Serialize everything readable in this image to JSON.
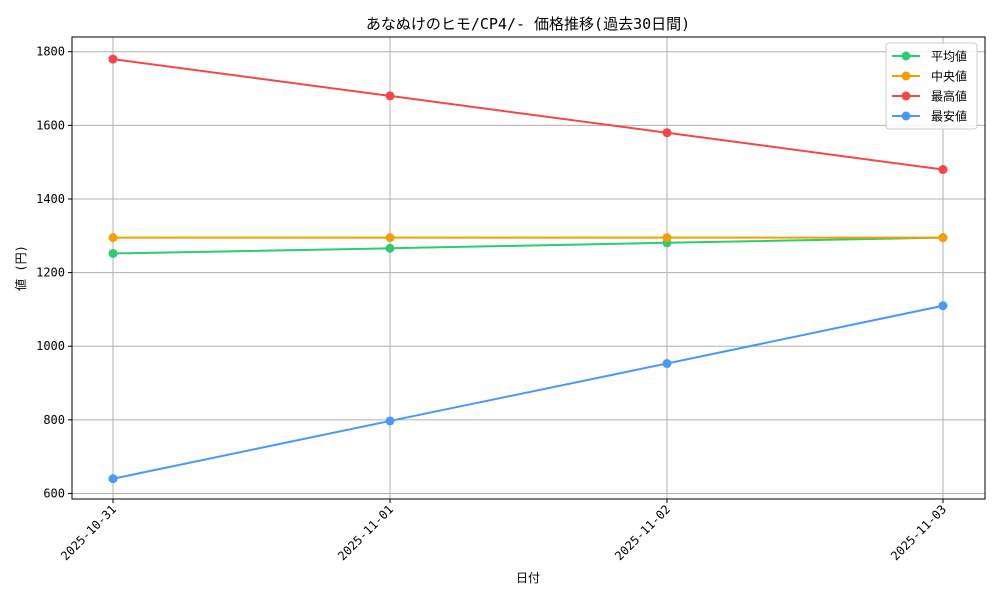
{
  "chart_data": {
    "type": "line",
    "title": "あなぬけのヒモ/CP4/- 価格推移(過去30日間)",
    "xlabel": "日付",
    "ylabel": "値 (円)",
    "categories": [
      "2025-10-31",
      "2025-11-01",
      "2025-11-02",
      "2025-11-03"
    ],
    "ylim": [
      585,
      1840
    ],
    "yticks": [
      600,
      800,
      1000,
      1200,
      1400,
      1600,
      1800
    ],
    "grid": true,
    "legend_position": "top-right",
    "series": [
      {
        "name": "平均値",
        "color": "#2ecc71",
        "values": [
          1252,
          1266,
          1281,
          1295
        ]
      },
      {
        "name": "中央値",
        "color": "#f5a000",
        "values": [
          1295,
          1295,
          1295,
          1295
        ]
      },
      {
        "name": "最高値",
        "color": "#f24848",
        "values": [
          1780,
          1680,
          1580,
          1480
        ]
      },
      {
        "name": "最安値",
        "color": "#4a9af5",
        "values": [
          640,
          797,
          953,
          1110
        ]
      }
    ]
  }
}
